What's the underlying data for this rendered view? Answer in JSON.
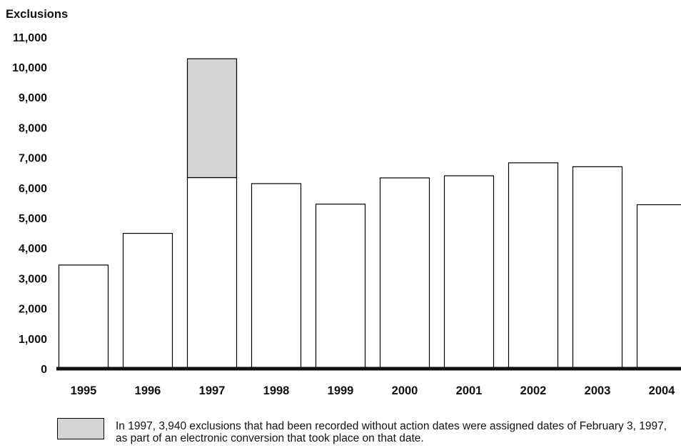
{
  "chart_data": {
    "type": "bar",
    "ylabel": "Exclusions",
    "xlabel": "",
    "title": "",
    "ylim": [
      0,
      11000
    ],
    "yticks": [
      "0",
      "1,000",
      "2,000",
      "3,000",
      "4,000",
      "5,000",
      "6,000",
      "7,000",
      "8,000",
      "9,000",
      "10,000",
      "11,000"
    ],
    "categories": [
      "1995",
      "1996",
      "1997",
      "1998",
      "1999",
      "2000",
      "2001",
      "2002",
      "2003",
      "2004"
    ],
    "series": [
      {
        "values": [
          3450,
          4500,
          6350,
          6150,
          5470,
          6340,
          6410,
          6840,
          6710,
          5450
        ],
        "color": "#ffffff"
      },
      {
        "values": [
          0,
          0,
          3940,
          0,
          0,
          0,
          0,
          0,
          0,
          0
        ],
        "color": "#d3d4d6"
      }
    ],
    "stacked": true,
    "grid": false,
    "annotation": "In 1997, 3,940 exclusions that had been recorded without action dates were assigned dates of February 3, 1997, as part of an electronic conversion that took place on that date."
  },
  "colors": {
    "base_fill": "#ffffff",
    "highlight_fill": "#d3d4d6",
    "outline": "#000000"
  }
}
